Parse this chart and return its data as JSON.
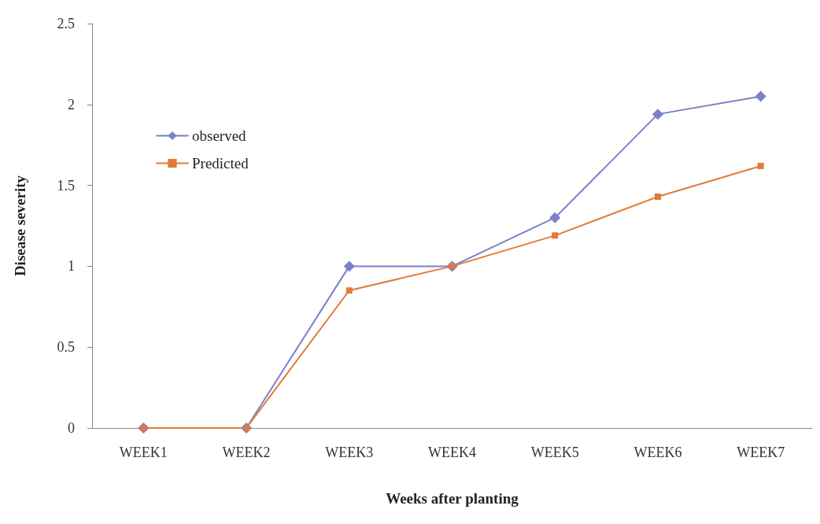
{
  "chart_data": {
    "type": "line",
    "xlabel": "Weeks after planting",
    "ylabel": "Disease severity",
    "categories": [
      "WEEK1",
      "WEEK2",
      "WEEK3",
      "WEEK4",
      "WEEK5",
      "WEEK6",
      "WEEK7"
    ],
    "series": [
      {
        "name": "observed",
        "color": "#7b80c8",
        "marker": "diamond",
        "values": [
          0,
          0,
          1.0,
          1.0,
          1.3,
          1.94,
          2.05
        ]
      },
      {
        "name": "Predicted",
        "color": "#e07b3a",
        "marker": "square",
        "values": [
          0,
          0,
          0.85,
          1.0,
          1.19,
          1.43,
          1.62
        ]
      }
    ],
    "ylim": [
      0,
      2.5
    ],
    "yticks": [
      0,
      0.5,
      1,
      1.5,
      2,
      2.5
    ],
    "grid": false,
    "legend": "top left"
  }
}
